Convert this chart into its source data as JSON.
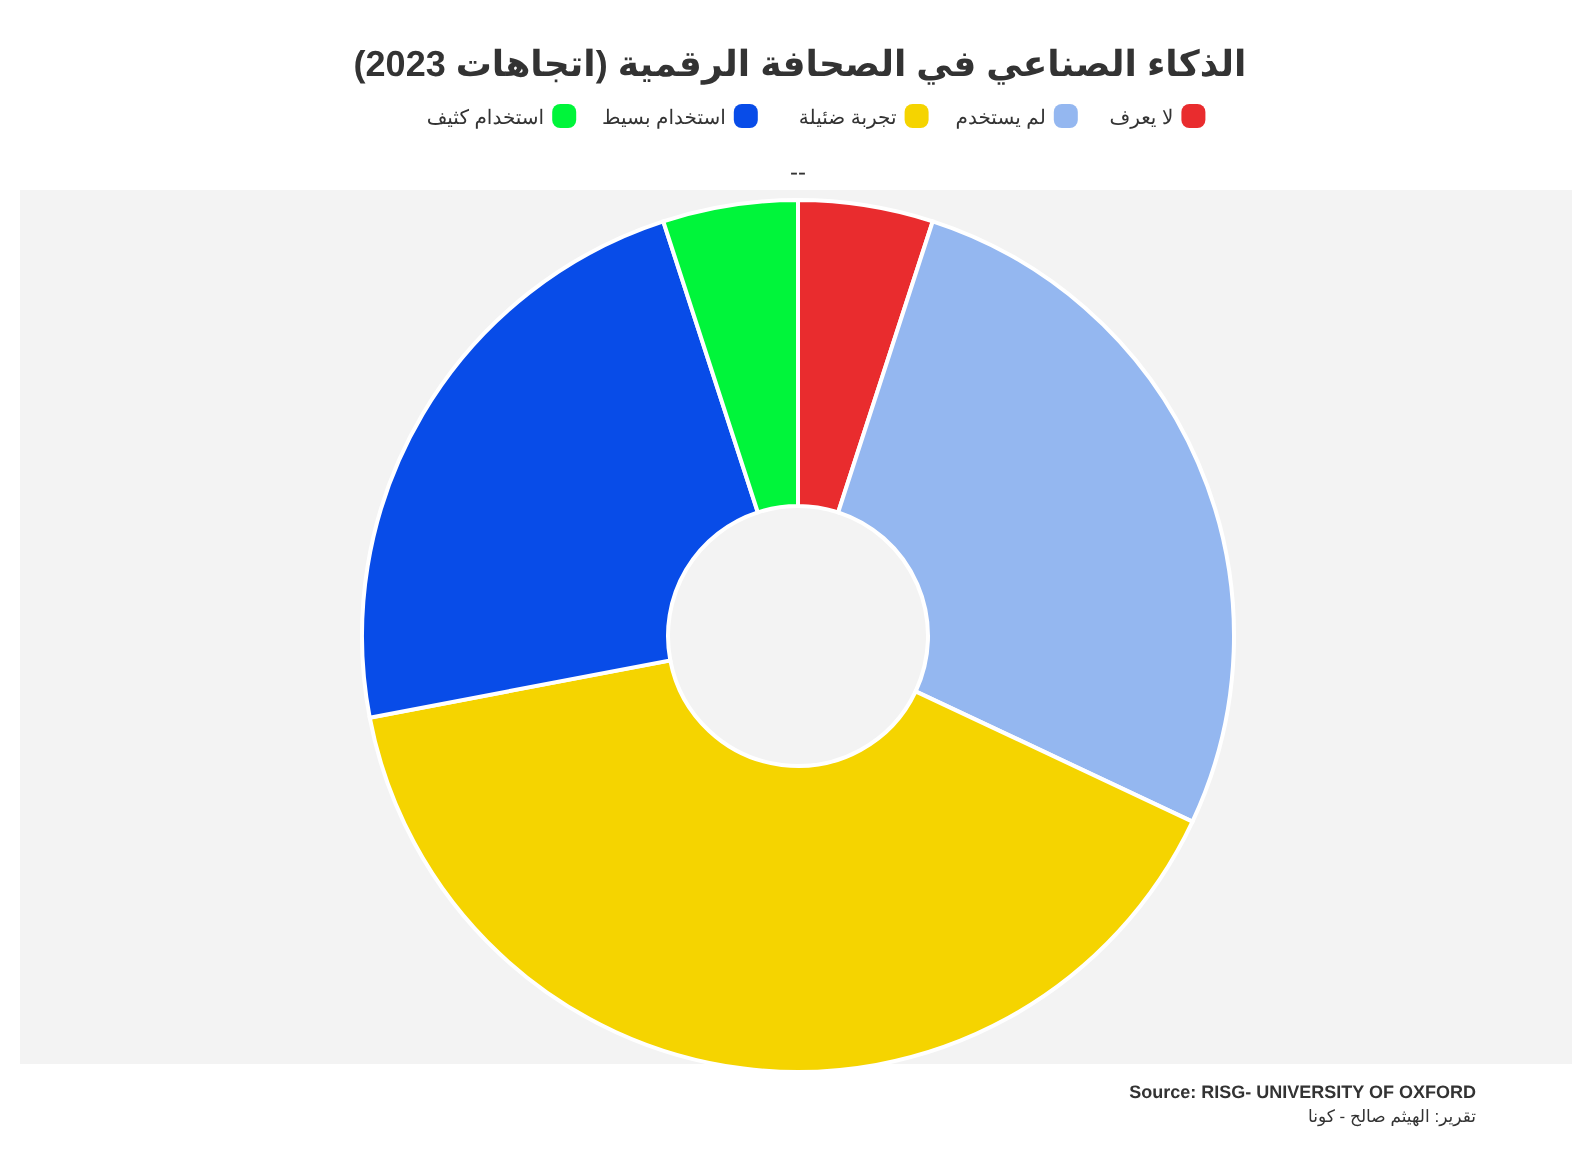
{
  "chart_data": {
    "type": "donut",
    "title": "الذكاء الصناعي في الصحافة الرقمية (اتجاهات 2023)",
    "subtitle": "--",
    "categories": [
      "لا يعرف",
      "لم يستخدم",
      "تجربة ضئيلة",
      "استخدام بسيط",
      "استخدام كثيف"
    ],
    "values": [
      5,
      27,
      40,
      23,
      5
    ],
    "colors": [
      "#e92c2e",
      "#94b7f0",
      "#f5d400",
      "#084ce8",
      "#00f53a"
    ],
    "legend": "top",
    "annotations": [
      "Source: RISG- UNIVERSITY OF OXFORD",
      "تقرير: الهيثم صالح - كونا"
    ]
  }
}
